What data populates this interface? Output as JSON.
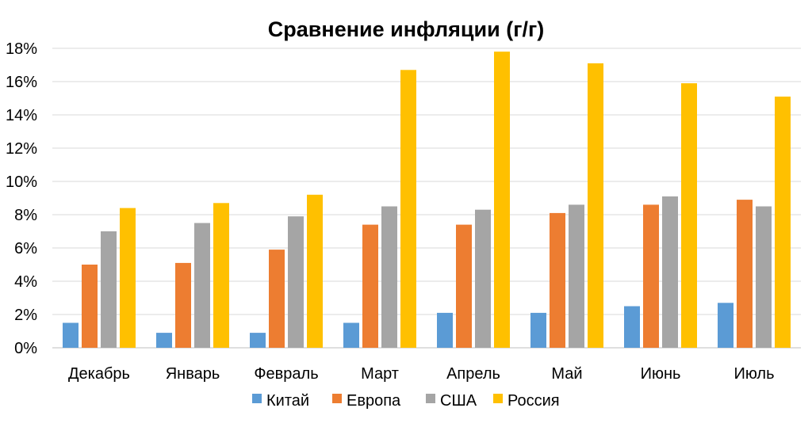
{
  "chart_data": {
    "type": "bar",
    "title": "Сравнение инфляции (г/г)",
    "xlabel": "",
    "ylabel": "",
    "ylim": [
      0,
      18
    ],
    "y_tick_values": [
      0,
      2,
      4,
      6,
      8,
      10,
      12,
      14,
      16,
      18
    ],
    "y_tick_labels": [
      "0%",
      "2%",
      "4%",
      "6%",
      "8%",
      "10%",
      "12%",
      "14%",
      "16%",
      "18%"
    ],
    "grid": true,
    "legend_position": "bottom",
    "categories": [
      "Декабрь",
      "Январь",
      "Февраль",
      "Март",
      "Апрель",
      "Май",
      "Июнь",
      "Июль"
    ],
    "series": [
      {
        "name": "Китай",
        "color": "#5b9bd5",
        "values": [
          1.5,
          0.9,
          0.9,
          1.5,
          2.1,
          2.1,
          2.5,
          2.7
        ]
      },
      {
        "name": "Европа",
        "color": "#ed7d31",
        "values": [
          5.0,
          5.1,
          5.9,
          7.4,
          7.4,
          8.1,
          8.6,
          8.9
        ]
      },
      {
        "name": "США",
        "color": "#a5a5a5",
        "values": [
          7.0,
          7.5,
          7.9,
          8.5,
          8.3,
          8.6,
          9.1,
          8.5
        ]
      },
      {
        "name": "Россия",
        "color": "#ffc000",
        "values": [
          8.4,
          8.7,
          9.2,
          16.7,
          17.8,
          17.1,
          15.9,
          15.1
        ]
      }
    ]
  }
}
